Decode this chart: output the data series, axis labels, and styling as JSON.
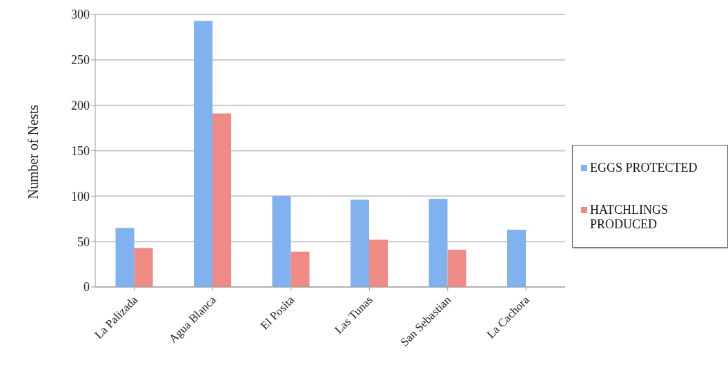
{
  "chart_data": {
    "type": "bar",
    "ylabel": "Number of Nests",
    "categories": [
      "La Palizada",
      "Agua Blanca",
      "El Posita",
      "Las Tunas",
      "San Sebastian",
      "La Cachora"
    ],
    "series": [
      {
        "name": "EGGS PROTECTED",
        "color": "#7fb2ee",
        "values": [
          65,
          293,
          100,
          96,
          97,
          63
        ]
      },
      {
        "name": "HATCHLINGS PRODUCED",
        "color": "#f08a84",
        "values": [
          43,
          191,
          39,
          52,
          41,
          null
        ]
      }
    ],
    "ylim": [
      0,
      300
    ],
    "yticks": [
      0,
      50,
      100,
      150,
      200,
      250,
      300
    ],
    "grid": "y",
    "legend": "right"
  }
}
